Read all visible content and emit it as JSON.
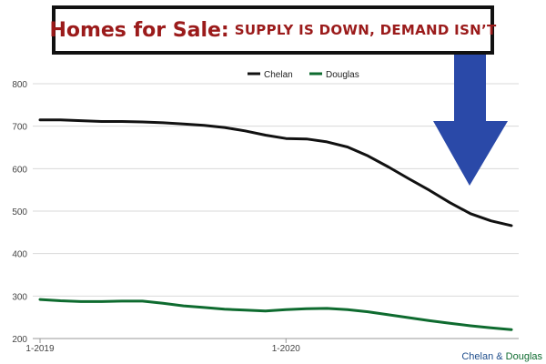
{
  "header": {
    "title_main": "Homes for Sale:",
    "title_sub": "SUPPLY IS DOWN, DEMAND ISN’T"
  },
  "source": {
    "part_a": "Chelan",
    "sep": " & ",
    "part_b": "Douglas"
  },
  "colors": {
    "chelan": "#111111",
    "douglas": "#0e6b2f",
    "arrow": "#2a49a8",
    "title": "#9b1b1b"
  },
  "chart_data": {
    "type": "line",
    "title": "",
    "xlabel": "",
    "ylabel": "",
    "ylim": [
      200,
      800
    ],
    "yticks": [
      200,
      300,
      400,
      500,
      600,
      700,
      800
    ],
    "xticks": [
      {
        "index": 0,
        "label": "1-2019"
      },
      {
        "index": 12,
        "label": "1-2020"
      }
    ],
    "x": [
      "1-2019",
      "2-2019",
      "3-2019",
      "4-2019",
      "5-2019",
      "6-2019",
      "7-2019",
      "8-2019",
      "9-2019",
      "10-2019",
      "11-2019",
      "12-2019",
      "1-2020",
      "2-2020",
      "3-2020",
      "4-2020",
      "5-2020",
      "6-2020",
      "7-2020",
      "8-2020",
      "9-2020",
      "10-2020",
      "11-2020",
      "12-2020"
    ],
    "grid": true,
    "legend": "top-center",
    "series": [
      {
        "name": "Chelan",
        "values": [
          715,
          715,
          713,
          711,
          711,
          710,
          708,
          705,
          702,
          697,
          689,
          679,
          671,
          670,
          663,
          651,
          630,
          604,
          576,
          549,
          520,
          494,
          477,
          466
        ]
      },
      {
        "name": "Douglas",
        "values": [
          292,
          289,
          287,
          287,
          288,
          288,
          283,
          277,
          273,
          269,
          267,
          265,
          268,
          270,
          271,
          268,
          263,
          256,
          249,
          242,
          236,
          230,
          225,
          221
        ]
      }
    ]
  }
}
